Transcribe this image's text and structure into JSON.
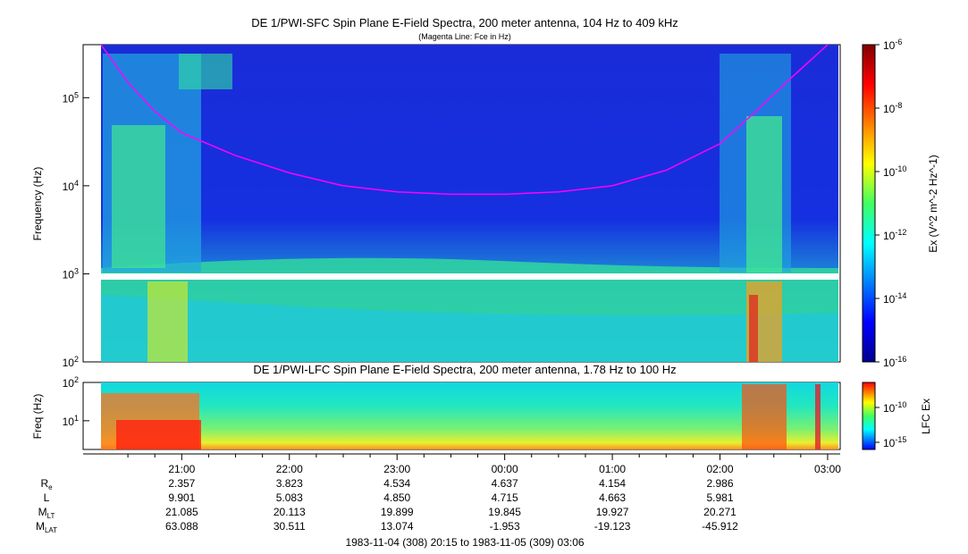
{
  "chart_data": [
    {
      "type": "heatmap",
      "title": "DE 1/PWI-SFC  Spin Plane E-Field Spectra, 200 meter antenna, 104 Hz to 409 kHz",
      "subtitle": "(Magenta Line: Fce in Hz)",
      "ylabel": "Frequency (Hz)",
      "y_scale": "log",
      "ylim": [
        100,
        400000
      ],
      "y_ticks": [
        "10^2",
        "10^3",
        "10^4",
        "10^5"
      ],
      "colorbar": {
        "label": "Ex (V^2 m^-2 Hz^-1)",
        "scale": "log",
        "range": [
          1e-16,
          1e-06
        ],
        "ticks": [
          "10^-16",
          "10^-14",
          "10^-12",
          "10^-10",
          "10^-8",
          "10^-6"
        ]
      },
      "overlay_line": {
        "name": "Fce",
        "color": "#ff00ff",
        "points": [
          [
            "20:15",
            400000
          ],
          [
            "20:30",
            150000
          ],
          [
            "20:45",
            70000
          ],
          [
            "21:00",
            40000
          ],
          [
            "21:30",
            22000
          ],
          [
            "22:00",
            14000
          ],
          [
            "22:30",
            10000
          ],
          [
            "23:00",
            8500
          ],
          [
            "23:30",
            8000
          ],
          [
            "00:00",
            8000
          ],
          [
            "00:30",
            8500
          ],
          [
            "01:00",
            10000
          ],
          [
            "01:30",
            15000
          ],
          [
            "02:00",
            30000
          ],
          [
            "02:20",
            70000
          ],
          [
            "02:40",
            170000
          ],
          [
            "03:00",
            400000
          ]
        ]
      }
    },
    {
      "type": "heatmap",
      "title": "DE 1/PWI-LFC  Spin Plane E-Field Spectra, 200 meter antenna, 1.78 Hz to 100 Hz",
      "ylabel": "Freq (Hz)",
      "y_scale": "log",
      "ylim": [
        1.78,
        100
      ],
      "y_ticks": [
        "10^1",
        "10^2"
      ],
      "colorbar": {
        "label": "LFC Ex",
        "scale": "log",
        "ticks": [
          "10^-10",
          "10^-15"
        ]
      }
    }
  ],
  "x_axis": {
    "ticks": [
      "21:00",
      "22:00",
      "23:00",
      "00:00",
      "01:00",
      "02:00",
      "03:00"
    ],
    "range_label": "1983-11-04 (308) 20:15 to 1983-11-05 (309) 03:06"
  },
  "ephemeris": {
    "rows": [
      {
        "label": "R",
        "sub": "e",
        "values": [
          "2.357",
          "3.823",
          "4.534",
          "4.637",
          "4.154",
          "2.986"
        ]
      },
      {
        "label": "L",
        "sub": "",
        "values": [
          "9.901",
          "5.083",
          "4.850",
          "4.715",
          "4.663",
          "5.981"
        ]
      },
      {
        "label": "M",
        "sub": "LT",
        "values": [
          "21.085",
          "20.113",
          "19.899",
          "19.845",
          "19.927",
          "20.271"
        ]
      },
      {
        "label": "M",
        "sub": "LAT",
        "values": [
          "63.088",
          "30.511",
          "13.074",
          "-1.953",
          "-19.123",
          "-45.912"
        ]
      }
    ]
  }
}
